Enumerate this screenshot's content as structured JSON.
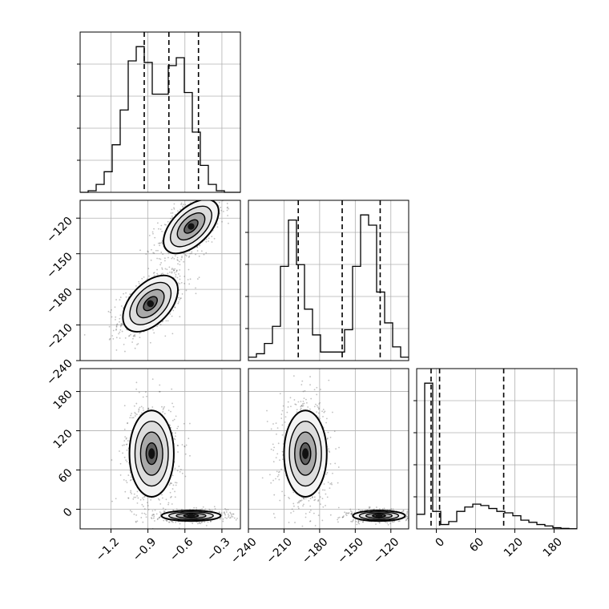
{
  "chart_data": {
    "type": "corner",
    "grid": true,
    "variables": [
      {
        "range": [
          -1.45,
          -0.15
        ],
        "ticks": [
          -1.2,
          -0.9,
          -0.6,
          -0.3
        ],
        "tick_labels": [
          "−1.2",
          "−0.9",
          "−0.6",
          "−0.3"
        ],
        "quantiles": [
          -0.93,
          -0.73,
          -0.49
        ],
        "histogram": {
          "bin_edges": [
            -1.45,
            -1.385,
            -1.32,
            -1.255,
            -1.19,
            -1.125,
            -1.06,
            -0.995,
            -0.93,
            -0.865,
            -0.8,
            -0.735,
            -0.67,
            -0.605,
            -0.54,
            -0.475,
            -0.41,
            -0.345,
            -0.28,
            -0.215,
            -0.15
          ],
          "counts": [
            0.0,
            0.01,
            0.05,
            0.13,
            0.3,
            0.52,
            0.83,
            0.92,
            0.82,
            0.62,
            0.62,
            0.8,
            0.85,
            0.63,
            0.38,
            0.17,
            0.05,
            0.01,
            0.0,
            0.0
          ]
        }
      },
      {
        "range": [
          -240,
          -105
        ],
        "ticks": [
          -240,
          -210,
          -180,
          -150,
          -120
        ],
        "tick_labels": [
          "−240",
          "−210",
          "−180",
          "−150",
          "−120"
        ],
        "quantiles": [
          -198,
          -161,
          -129
        ],
        "histogram": {
          "bin_edges": [
            -240,
            -233.25,
            -226.5,
            -219.75,
            -213,
            -206.25,
            -199.5,
            -192.75,
            -186,
            -179.25,
            -172.5,
            -165.75,
            -159,
            -152.25,
            -145.5,
            -138.75,
            -132,
            -125.25,
            -118.5,
            -111.75,
            -105
          ],
          "counts": [
            0.02,
            0.04,
            0.1,
            0.2,
            0.55,
            0.82,
            0.56,
            0.3,
            0.15,
            0.05,
            0.05,
            0.05,
            0.18,
            0.55,
            0.85,
            0.79,
            0.4,
            0.22,
            0.08,
            0.02
          ]
        }
      },
      {
        "range": [
          -30,
          215
        ],
        "ticks": [
          0,
          60,
          120,
          180
        ],
        "tick_labels": [
          "0",
          "60",
          "120",
          "180"
        ],
        "quantiles": [
          -8,
          5,
          103
        ],
        "histogram": {
          "bin_edges": [
            -30,
            -17.75,
            -5.5,
            6.75,
            19,
            31.25,
            43.5,
            55.75,
            68,
            80.25,
            92.5,
            104.75,
            117,
            129.25,
            141.5,
            153.75,
            166,
            178.25,
            190.5,
            202.75,
            215
          ],
          "counts": [
            0.1,
            1.0,
            0.12,
            0.03,
            0.05,
            0.12,
            0.15,
            0.17,
            0.16,
            0.14,
            0.12,
            0.11,
            0.09,
            0.06,
            0.045,
            0.03,
            0.02,
            0.008,
            0.003,
            0.001
          ]
        }
      }
    ],
    "pairs": [
      {
        "x_var": 0,
        "y_var": 1,
        "scatter_color": "#4a4a4a",
        "clusters": [
          {
            "center": [
              -0.88,
              -192
            ],
            "spread": [
              0.11,
              12
            ],
            "corr": 0.55,
            "points": 700
          },
          {
            "center": [
              -0.55,
              -127
            ],
            "spread": [
              0.11,
              11
            ],
            "corr": 0.55,
            "points": 700
          }
        ]
      },
      {
        "x_var": 0,
        "y_var": 2,
        "scatter_color": "#4a4a4a",
        "clusters": [
          {
            "center": [
              -0.87,
              85
            ],
            "spread": [
              0.09,
              33
            ],
            "corr": 0.0,
            "points": 800
          },
          {
            "center": [
              -0.55,
              -10
            ],
            "spread": [
              0.12,
              4
            ],
            "corr": 0.0,
            "points": 600
          }
        ]
      },
      {
        "x_var": 1,
        "y_var": 2,
        "scatter_color": "#4a4a4a",
        "clusters": [
          {
            "center": [
              -192,
              85
            ],
            "spread": [
              9,
              33
            ],
            "corr": 0.0,
            "points": 800
          },
          {
            "center": [
              -130,
              -10
            ],
            "spread": [
              11,
              4
            ],
            "corr": 0.0,
            "points": 600
          }
        ]
      }
    ]
  }
}
